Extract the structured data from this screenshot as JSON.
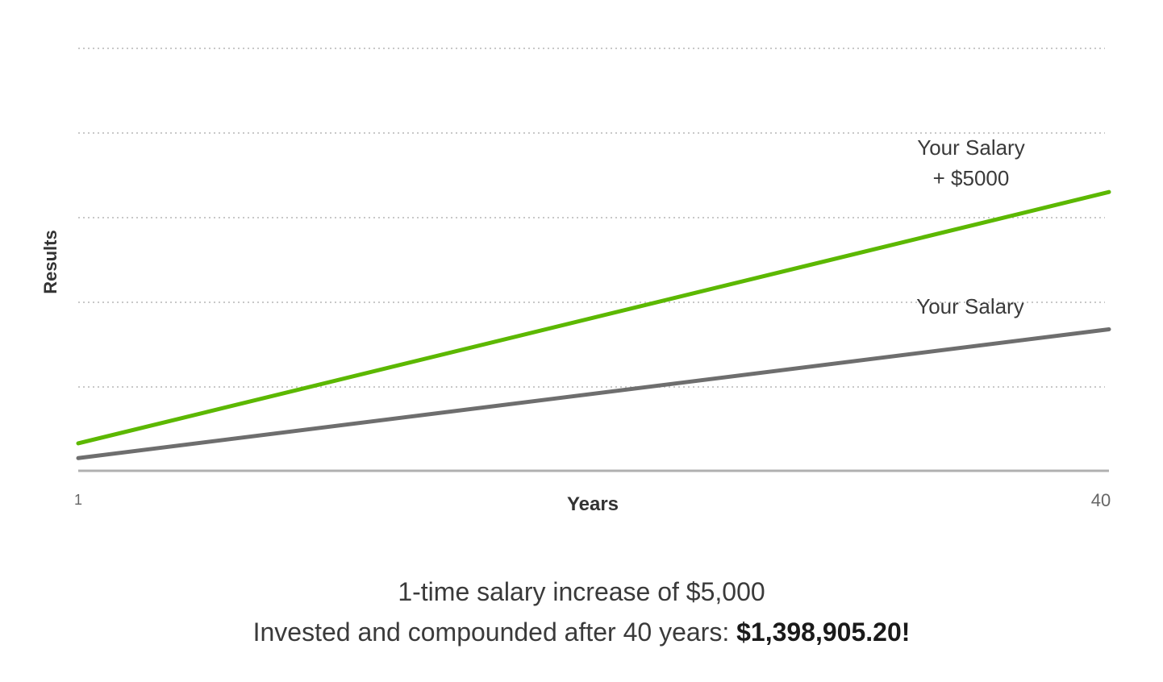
{
  "chart_data": {
    "type": "line",
    "x": [
      1,
      40
    ],
    "xlabel": "Years",
    "ylabel": "Results",
    "x_ticks": [
      "1",
      "40"
    ],
    "ylim": [
      0,
      100
    ],
    "grid": "horizontal dotted",
    "series": [
      {
        "name": "Your Salary + $5000",
        "label_lines": [
          "Your Salary",
          "+ $5000"
        ],
        "values": [
          6.5,
          66
        ],
        "color": "#5cb800"
      },
      {
        "name": "Your Salary",
        "label_lines": [
          "Your Salary"
        ],
        "values": [
          3,
          33.5
        ],
        "color": "#6e6e6e"
      }
    ]
  },
  "caption": {
    "line1": "1-time salary increase of $5,000",
    "line2_prefix": "Invested and compounded after 40 years: ",
    "line2_amount": "$1,398,905.20!"
  },
  "colors": {
    "grid": "#c8c8c8",
    "axis": "#b0b0b0",
    "text": "#3a3a3a"
  }
}
